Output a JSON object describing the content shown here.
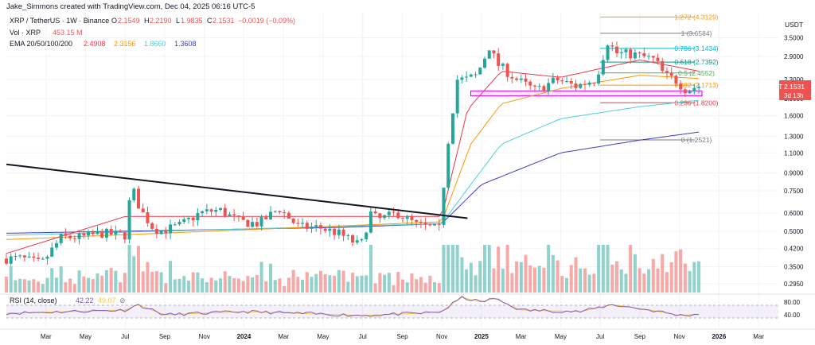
{
  "header": {
    "creator": "Jake_Simmons created with TradingView.com, Dec 04, 2025 06:16 UTC-5",
    "symbol": "XRP / TetherUS · 1W · Binance",
    "o_label": "O",
    "o_value": "2.1549",
    "h_label": "H",
    "h_value": "2.2190",
    "l_label": "L",
    "l_value": "1.9835",
    "c_label": "C",
    "c_value": "2.1531",
    "change": "−0.0019 (−0.09%)",
    "vol_label": "Vol · XRP",
    "vol_value": "453.15 M",
    "ema_label": "EMA 20/50/100/200",
    "ema_values": [
      "2.4908",
      "2.3156",
      "1.8660",
      "1.3608"
    ]
  },
  "colors": {
    "up": "#26a69a",
    "down": "#ef5350",
    "ema20": "#f23645",
    "ema50": "#ff9800",
    "ema100": "#4dd0e1",
    "ema200": "#3f3fbf",
    "rsi": "#7e57c2",
    "rsi_ma": "#f7c948",
    "fib_0": "#787b86",
    "fib_0236": "#f23645",
    "fib_0382": "#ff9800",
    "fib_05": "#4caf50",
    "fib_0618": "#089981",
    "fib_0786": "#00bcd4",
    "fib_1": "#787b86",
    "fib_1272": "#ff9800"
  },
  "price_axis": {
    "currency": "USDT",
    "ticks": [
      "3.5000",
      "2.9000",
      "2.3000",
      "1.9000",
      "1.6000",
      "1.3000",
      "1.1000",
      "0.9000",
      "0.7500",
      "0.6000",
      "0.5000",
      "0.4200",
      "0.3500",
      "0.2950"
    ]
  },
  "price_tag": {
    "symbol": "XRPUSDT",
    "price": "2.1531",
    "countdown": "3d 13h"
  },
  "fib_levels": [
    {
      "ratio": "0",
      "label": "0 (1.2521)",
      "price": 1.2521,
      "color": "#787b86"
    },
    {
      "ratio": "0.236",
      "label": "0.236 (1.8200)",
      "price": 1.82,
      "color": "#f23645"
    },
    {
      "ratio": "0.382",
      "label": "0.382 (2.1713)",
      "price": 2.1713,
      "color": "#ff9800"
    },
    {
      "ratio": "0.5",
      "label": "0.5 (2.4552)",
      "price": 2.4552,
      "color": "#4caf50"
    },
    {
      "ratio": "0.618",
      "label": "0.618 (2.7392)",
      "price": 2.7392,
      "color": "#089981"
    },
    {
      "ratio": "0.786",
      "label": "0.786 (3.1434)",
      "price": 3.1434,
      "color": "#00bcd4"
    },
    {
      "ratio": "1",
      "label": "1 (3.6584)",
      "price": 3.6584,
      "color": "#787b86"
    },
    {
      "ratio": "1.272",
      "label": "1.272 (4.3129)",
      "price": 4.3129,
      "color": "#ff9800"
    }
  ],
  "rsi": {
    "title": "RSI (14, close)",
    "value": "42.22",
    "ma_value": "49.07",
    "ticks": [
      "80.00",
      "40.00"
    ]
  },
  "time_axis": [
    "Mar",
    "May",
    "Jul",
    "Sep",
    "Nov",
    "2024",
    "Mar",
    "May",
    "Jul",
    "Sep",
    "Nov",
    "2025",
    "Mar",
    "May",
    "Jul",
    "Sep",
    "Nov",
    "2026",
    "Mar"
  ],
  "chart_data": {
    "type": "candlestick",
    "title": "XRP / TetherUS · 1W · Binance",
    "ylabel": "USDT",
    "yscale": "log",
    "ylim": [
      0.27,
      4.5
    ],
    "x_start": "2023-01",
    "x_end": "2026-04",
    "anchors": [
      [
        "2023-02",
        0.38
      ],
      [
        "2023-03",
        0.36
      ],
      [
        "2023-04",
        0.47
      ],
      [
        "2023-05",
        0.47
      ],
      [
        "2023-06",
        0.49
      ],
      [
        "2023-07-10",
        0.48
      ],
      [
        "2023-07-17",
        0.8
      ],
      [
        "2023-08",
        0.62
      ],
      [
        "2023-08-20",
        0.52
      ],
      [
        "2023-09",
        0.5
      ],
      [
        "2023-10",
        0.53
      ],
      [
        "2023-11",
        0.6
      ],
      [
        "2023-12",
        0.62
      ],
      [
        "2024-01",
        0.55
      ],
      [
        "2024-02",
        0.54
      ],
      [
        "2024-03",
        0.63
      ],
      [
        "2024-04",
        0.52
      ],
      [
        "2024-05",
        0.52
      ],
      [
        "2024-06",
        0.49
      ],
      [
        "2024-07-05",
        0.43
      ],
      [
        "2024-07-20",
        0.6
      ],
      [
        "2024-08",
        0.56
      ],
      [
        "2024-09",
        0.6
      ],
      [
        "2024-10",
        0.53
      ],
      [
        "2024-11-05",
        0.51
      ],
      [
        "2024-11-15",
        1.1
      ],
      [
        "2024-12-01",
        2.3
      ],
      [
        "2024-12-15",
        2.3
      ],
      [
        "2025-01",
        2.4
      ],
      [
        "2025-01-20",
        3.2
      ],
      [
        "2025-02",
        2.7
      ],
      [
        "2025-03",
        2.3
      ],
      [
        "2025-04",
        2.05
      ],
      [
        "2025-05",
        2.3
      ],
      [
        "2025-06",
        2.15
      ],
      [
        "2025-07",
        2.3
      ],
      [
        "2025-07-20",
        3.4
      ],
      [
        "2025-08",
        3.0
      ],
      [
        "2025-09",
        2.95
      ],
      [
        "2025-10",
        2.8
      ],
      [
        "2025-10-15",
        2.4
      ],
      [
        "2025-11",
        2.3
      ],
      [
        "2025-11-20",
        2.05
      ],
      [
        "2025-12-04",
        2.15
      ]
    ],
    "ema200_path": [
      [
        "2023-01",
        0.49
      ],
      [
        "2024-06",
        0.52
      ],
      [
        "2024-11",
        0.54
      ],
      [
        "2025-01",
        0.8
      ],
      [
        "2025-05",
        1.1
      ],
      [
        "2025-09",
        1.25
      ],
      [
        "2025-12-04",
        1.36
      ]
    ],
    "ema100_path": [
      [
        "2023-01",
        0.48
      ],
      [
        "2024-11",
        0.54
      ],
      [
        "2024-12-15",
        0.8
      ],
      [
        "2025-02",
        1.2
      ],
      [
        "2025-05",
        1.55
      ],
      [
        "2025-09",
        1.75
      ],
      [
        "2025-12-04",
        1.87
      ]
    ],
    "ema50_path": [
      [
        "2023-01",
        0.46
      ],
      [
        "2024-11",
        0.55
      ],
      [
        "2024-12-15",
        1.2
      ],
      [
        "2025-02",
        1.8
      ],
      [
        "2025-05",
        2.1
      ],
      [
        "2025-09",
        2.4
      ],
      [
        "2025-12-04",
        2.32
      ]
    ],
    "ema20_path": [
      [
        "2023-01",
        0.4
      ],
      [
        "2023-07",
        0.58
      ],
      [
        "2024-01",
        0.58
      ],
      [
        "2024-11",
        0.58
      ],
      [
        "2024-12-10",
        1.7
      ],
      [
        "2025-02",
        2.5
      ],
      [
        "2025-05",
        2.35
      ],
      [
        "2025-09",
        2.8
      ],
      [
        "2025-12-04",
        2.49
      ]
    ],
    "trendline": [
      [
        "2023-01",
        0.98
      ],
      [
        "2024-12-10",
        0.57
      ]
    ],
    "support_zone": [
      1.95,
      2.05
    ],
    "volume_unit": "M",
    "rsi_range": [
      0,
      100
    ],
    "rsi_bands": [
      30,
      70
    ]
  }
}
